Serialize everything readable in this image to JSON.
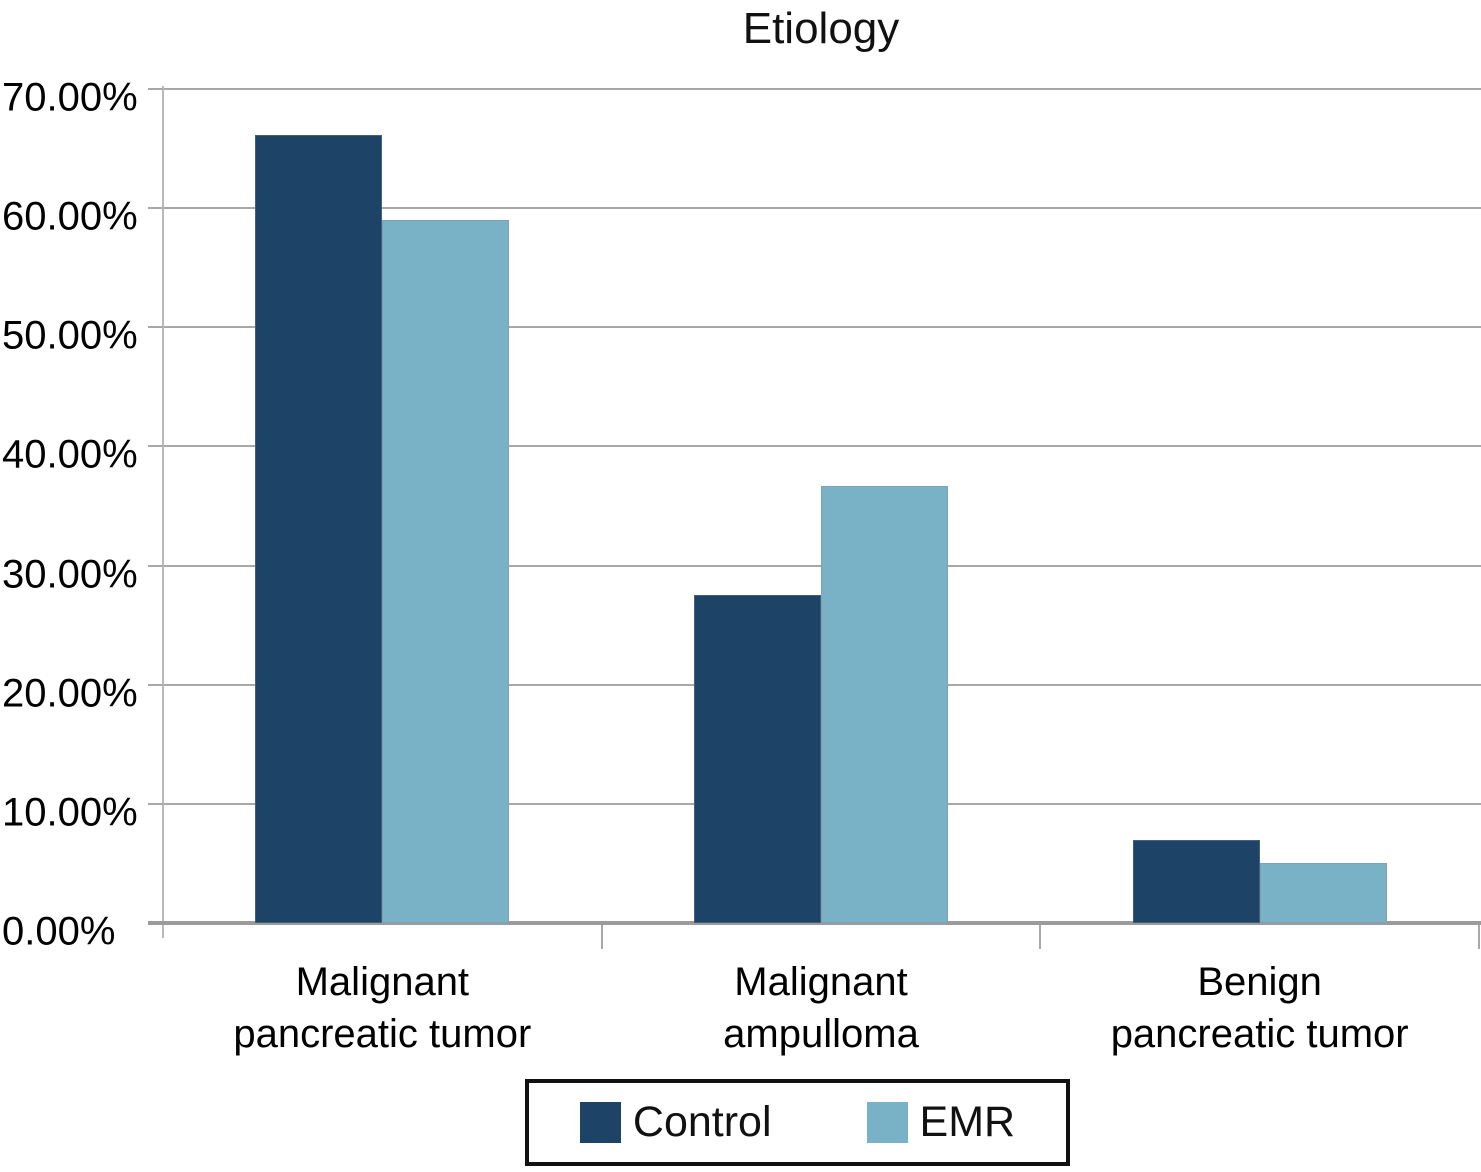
{
  "title": "Etiology",
  "colors": {
    "control": "#1d4366",
    "emr": "#79b2c7",
    "gridline": "#a8a8a8",
    "axis": "#9b9b9b",
    "legend_border": "#111111",
    "background": "#ffffff"
  },
  "chart_data": {
    "type": "bar",
    "title": "Etiology",
    "categories": [
      "Malignant\npancreatic tumor",
      "Malignant\nampulloma",
      "Benign\npancreatic tumor"
    ],
    "series": [
      {
        "name": "Control",
        "color": "#1d4366",
        "values": [
          66.1,
          27.5,
          7.0
        ]
      },
      {
        "name": "EMR",
        "color": "#79b2c7",
        "values": [
          59.0,
          36.7,
          5.0
        ]
      }
    ],
    "xlabel": "",
    "ylabel": "",
    "ylim": [
      0,
      70
    ],
    "y_tick_step": 10,
    "y_tick_labels": [
      "70.00%",
      "60.00%",
      "50.00%",
      "40.00%",
      "30.00%",
      "20.00%",
      "10.00%",
      "0.00%"
    ],
    "grid": true,
    "legend_position": "bottom"
  }
}
